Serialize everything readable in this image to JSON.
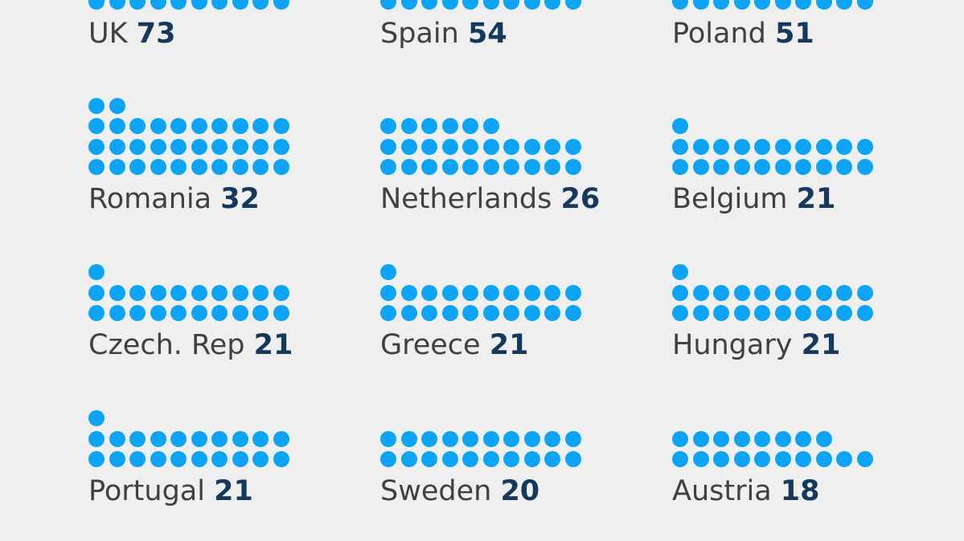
{
  "chart_data": {
    "type": "pictogram",
    "colors": {
      "dot": "#0ea4f5",
      "country": "#3f4141",
      "value": "#15385d",
      "background": "#efefef"
    },
    "items": [
      {
        "country": "UK",
        "value": 73
      },
      {
        "country": "Spain",
        "value": 54
      },
      {
        "country": "Poland",
        "value": 51
      },
      {
        "country": "Romania",
        "value": 32
      },
      {
        "country": "Netherlands",
        "value": 26
      },
      {
        "country": "Belgium",
        "value": 21
      },
      {
        "country": "Czech. Rep",
        "value": 21
      },
      {
        "country": "Greece",
        "value": 21
      },
      {
        "country": "Hungary",
        "value": 21
      },
      {
        "country": "Portugal",
        "value": 21
      },
      {
        "country": "Sweden",
        "value": 20
      },
      {
        "country": "Austria",
        "value": 18
      }
    ]
  }
}
